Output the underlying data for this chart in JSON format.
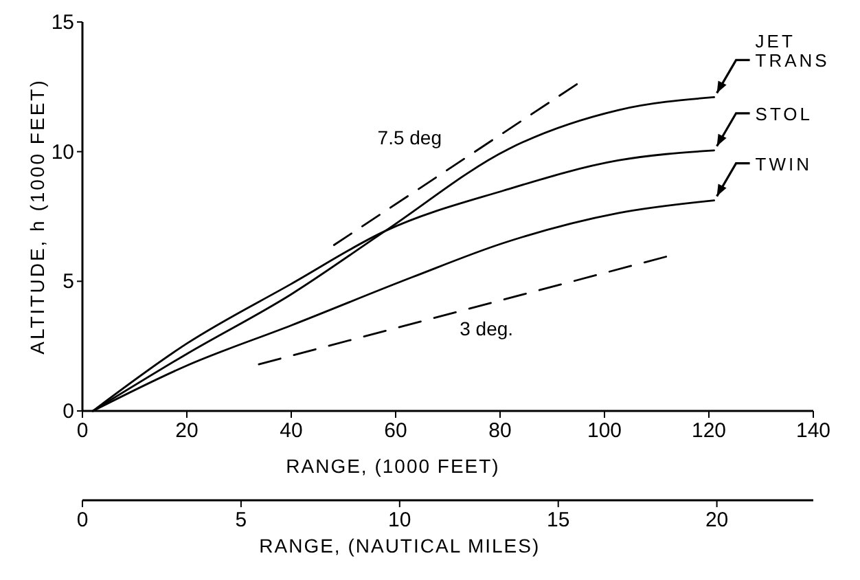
{
  "chart_data": {
    "type": "line",
    "xlabel": "RANGE, (1000 FEET)",
    "ylabel": "ALTITUDE, h (1000 FEET)",
    "x2label": "RANGE, (NAUTICAL MILES)",
    "xlim": [
      0,
      140
    ],
    "xticks": [
      0,
      20,
      40,
      60,
      80,
      100,
      120,
      140
    ],
    "ylim": [
      0,
      15
    ],
    "yticks": [
      0,
      5,
      10,
      15
    ],
    "x2lim": [
      0,
      23.04
    ],
    "x2ticks": [
      0,
      5,
      10,
      15,
      20
    ],
    "marker": "none",
    "line_style": "solid",
    "series": [
      {
        "name": "JET TRANS",
        "color": "#000000",
        "x": [
          2,
          20,
          40,
          58,
          81.6,
          102.6,
          121
        ],
        "values": [
          0,
          2.2,
          4.5,
          6.94,
          10.1,
          11.6,
          12.1
        ]
      },
      {
        "name": "STOL",
        "color": "#000000",
        "x": [
          2,
          20,
          40,
          58,
          80.7,
          102.6,
          121
        ],
        "values": [
          0,
          2.6,
          4.9,
          6.94,
          8.5,
          9.66,
          10.05
        ]
      },
      {
        "name": "TWIN",
        "color": "#000000",
        "x": [
          2,
          20,
          40,
          63.2,
          80.7,
          102.6,
          121
        ],
        "values": [
          0,
          1.75,
          3.3,
          5.16,
          6.48,
          7.63,
          8.12
        ]
      },
      {
        "name": "7.5 deg",
        "color": "#000000",
        "line_style": "dashed",
        "x": [
          48.2,
          94.7
        ],
        "values": [
          6.4,
          12.6
        ]
      },
      {
        "name": "3 deg.",
        "color": "#000000",
        "line_style": "dashed",
        "x": [
          33.8,
          111.8
        ],
        "values": [
          1.8,
          5.95
        ]
      }
    ]
  }
}
